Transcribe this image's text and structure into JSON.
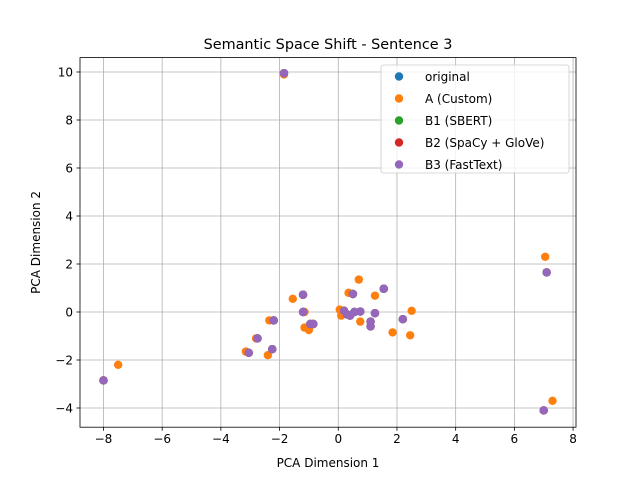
{
  "chart_data": {
    "type": "scatter",
    "title": "Semantic Space Shift - Sentence 3",
    "xlabel": "PCA Dimension 1",
    "ylabel": "PCA Dimension 2",
    "xlim": [
      -8.8,
      8.1
    ],
    "ylim": [
      -4.8,
      10.6
    ],
    "xticks": [
      -8,
      -6,
      -4,
      -2,
      0,
      2,
      4,
      6,
      8
    ],
    "yticks": [
      -4,
      -2,
      0,
      2,
      4,
      6,
      8,
      10
    ],
    "xtick_labels": [
      "−8",
      "−6",
      "−4",
      "−2",
      "0",
      "2",
      "4",
      "6",
      "8"
    ],
    "ytick_labels": [
      "−4",
      "−2",
      "0",
      "2",
      "4",
      "6",
      "8",
      "10"
    ],
    "grid": true,
    "legend_position": "upper-right",
    "series": [
      {
        "name": "original",
        "color": "#1f77b4",
        "points": [
          [
            -8.0,
            -2.85
          ],
          [
            -3.05,
            -1.7
          ],
          [
            -2.75,
            -1.1
          ],
          [
            -2.25,
            -1.55
          ],
          [
            -2.2,
            -0.35
          ],
          [
            -1.85,
            9.95
          ],
          [
            -1.2,
            0.72
          ],
          [
            -1.2,
            0.0
          ],
          [
            -0.95,
            -0.5
          ],
          [
            -0.85,
            -0.5
          ],
          [
            0.2,
            0.05
          ],
          [
            0.3,
            -0.1
          ],
          [
            0.4,
            -0.15
          ],
          [
            0.5,
            0.75
          ],
          [
            0.55,
            0.0
          ],
          [
            0.75,
            0.02
          ],
          [
            1.1,
            -0.4
          ],
          [
            1.1,
            -0.6
          ],
          [
            1.25,
            -0.05
          ],
          [
            1.55,
            0.97
          ],
          [
            2.2,
            -0.3
          ],
          [
            7.0,
            -4.1
          ],
          [
            7.1,
            1.65
          ]
        ]
      },
      {
        "name": "A (Custom)",
        "color": "#ff7f0e",
        "points": [
          [
            -8.0,
            -2.85
          ],
          [
            -7.5,
            -2.2
          ],
          [
            -3.15,
            -1.65
          ],
          [
            -2.8,
            -1.1
          ],
          [
            -2.4,
            -1.8
          ],
          [
            -2.35,
            -0.35
          ],
          [
            -1.85,
            9.9
          ],
          [
            -1.55,
            0.55
          ],
          [
            -1.15,
            -0.65
          ],
          [
            -1.15,
            0.0
          ],
          [
            -1.0,
            -0.75
          ],
          [
            0.05,
            0.1
          ],
          [
            0.1,
            -0.15
          ],
          [
            0.35,
            0.8
          ],
          [
            0.7,
            1.35
          ],
          [
            0.75,
            -0.4
          ],
          [
            1.25,
            0.68
          ],
          [
            1.85,
            -0.85
          ],
          [
            2.45,
            -0.97
          ],
          [
            2.5,
            0.05
          ],
          [
            7.05,
            2.3
          ],
          [
            7.3,
            -3.7
          ],
          [
            7.0,
            -4.1
          ]
        ]
      },
      {
        "name": "B1 (SBERT)",
        "color": "#2ca02c",
        "points": [
          [
            -8.0,
            -2.85
          ],
          [
            -3.05,
            -1.7
          ],
          [
            -2.75,
            -1.1
          ],
          [
            -2.25,
            -1.55
          ],
          [
            -2.2,
            -0.35
          ],
          [
            -1.85,
            9.95
          ],
          [
            -1.2,
            0.72
          ],
          [
            -1.2,
            0.0
          ],
          [
            -0.95,
            -0.5
          ],
          [
            -0.85,
            -0.5
          ],
          [
            0.2,
            0.05
          ],
          [
            0.3,
            -0.1
          ],
          [
            0.4,
            -0.15
          ],
          [
            0.5,
            0.75
          ],
          [
            0.55,
            0.0
          ],
          [
            0.75,
            0.02
          ],
          [
            1.1,
            -0.4
          ],
          [
            1.1,
            -0.6
          ],
          [
            1.25,
            -0.05
          ],
          [
            1.55,
            0.97
          ],
          [
            2.2,
            -0.3
          ],
          [
            7.0,
            -4.1
          ],
          [
            7.1,
            1.65
          ]
        ]
      },
      {
        "name": "B2 (SpaCy + GloVe)",
        "color": "#d62728",
        "points": [
          [
            -8.0,
            -2.85
          ],
          [
            -3.05,
            -1.7
          ],
          [
            -2.75,
            -1.1
          ],
          [
            -2.25,
            -1.55
          ],
          [
            -2.2,
            -0.35
          ],
          [
            -1.85,
            9.95
          ],
          [
            -1.2,
            0.72
          ],
          [
            -1.2,
            0.0
          ],
          [
            -0.95,
            -0.5
          ],
          [
            -0.85,
            -0.5
          ],
          [
            0.2,
            0.05
          ],
          [
            0.3,
            -0.1
          ],
          [
            0.4,
            -0.15
          ],
          [
            0.5,
            0.75
          ],
          [
            0.55,
            0.0
          ],
          [
            0.75,
            0.02
          ],
          [
            1.1,
            -0.4
          ],
          [
            1.1,
            -0.6
          ],
          [
            1.25,
            -0.05
          ],
          [
            1.55,
            0.97
          ],
          [
            2.2,
            -0.3
          ],
          [
            7.0,
            -4.1
          ],
          [
            7.1,
            1.65
          ]
        ]
      },
      {
        "name": "B3 (FastText)",
        "color": "#9467bd",
        "points": [
          [
            -8.0,
            -2.85
          ],
          [
            -3.05,
            -1.7
          ],
          [
            -2.75,
            -1.1
          ],
          [
            -2.25,
            -1.55
          ],
          [
            -2.2,
            -0.35
          ],
          [
            -1.85,
            9.95
          ],
          [
            -1.2,
            0.72
          ],
          [
            -1.2,
            0.0
          ],
          [
            -0.95,
            -0.5
          ],
          [
            -0.85,
            -0.5
          ],
          [
            0.2,
            0.05
          ],
          [
            0.3,
            -0.1
          ],
          [
            0.4,
            -0.15
          ],
          [
            0.5,
            0.75
          ],
          [
            0.55,
            0.0
          ],
          [
            0.75,
            0.02
          ],
          [
            1.1,
            -0.4
          ],
          [
            1.1,
            -0.6
          ],
          [
            1.25,
            -0.05
          ],
          [
            1.55,
            0.97
          ],
          [
            2.2,
            -0.3
          ],
          [
            7.0,
            -4.1
          ],
          [
            7.1,
            1.65
          ]
        ]
      }
    ]
  }
}
